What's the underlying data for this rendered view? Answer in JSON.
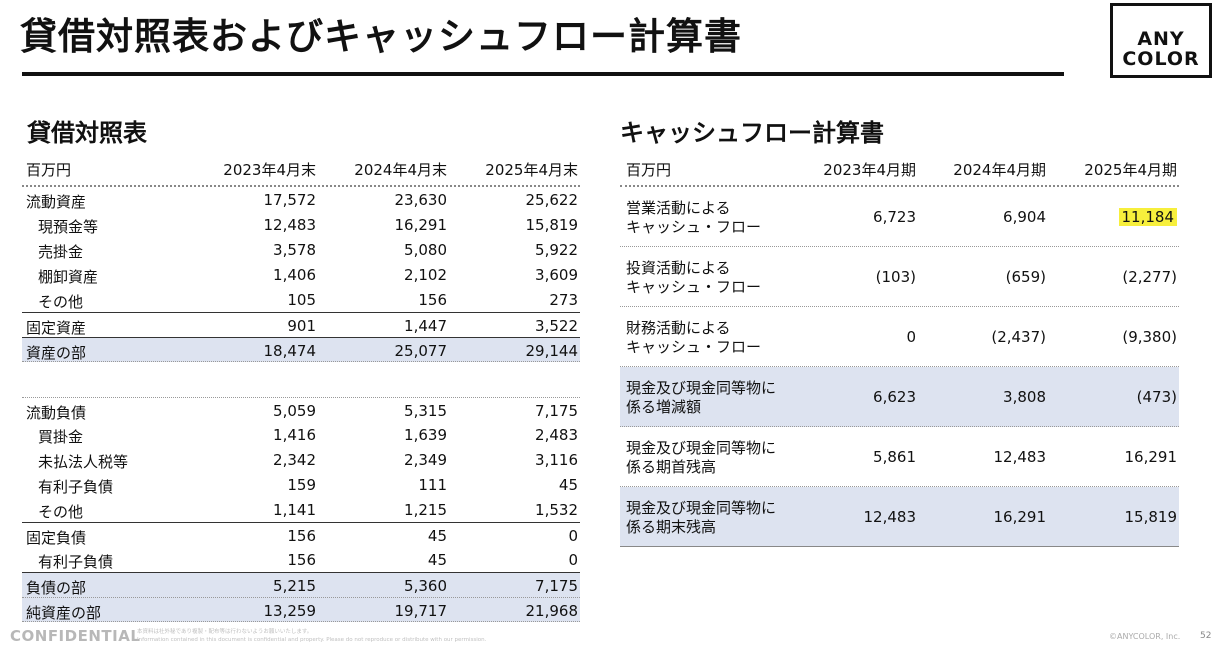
{
  "header": {
    "title": "貸借対照表およびキャッシュフロー計算書",
    "logo_line1": "ANY",
    "logo_line2": "COLOR"
  },
  "balance_sheet": {
    "title": "貸借対照表",
    "columns": [
      "百万円",
      "2023年4月末",
      "2024年4月末",
      "2025年4月末"
    ],
    "rows": [
      {
        "label": "流動資産",
        "v": [
          "17,572",
          "23,630",
          "25,622"
        ]
      },
      {
        "label": "現預金等",
        "v": [
          "12,483",
          "16,291",
          "15,819"
        ]
      },
      {
        "label": "売掛金",
        "v": [
          "3,578",
          "5,080",
          "5,922"
        ]
      },
      {
        "label": "棚卸資産",
        "v": [
          "1,406",
          "2,102",
          "3,609"
        ]
      },
      {
        "label": "その他",
        "v": [
          "105",
          "156",
          "273"
        ]
      },
      {
        "label": "固定資産",
        "v": [
          "901",
          "1,447",
          "3,522"
        ]
      },
      {
        "label": "資産の部",
        "v": [
          "18,474",
          "25,077",
          "29,144"
        ]
      },
      {
        "label": "流動負債",
        "v": [
          "5,059",
          "5,315",
          "7,175"
        ]
      },
      {
        "label": "買掛金",
        "v": [
          "1,416",
          "1,639",
          "2,483"
        ]
      },
      {
        "label": "未払法人税等",
        "v": [
          "2,342",
          "2,349",
          "3,116"
        ]
      },
      {
        "label": "有利子負債",
        "v": [
          "159",
          "111",
          "45"
        ]
      },
      {
        "label": "その他",
        "v": [
          "1,141",
          "1,215",
          "1,532"
        ]
      },
      {
        "label": "固定負債",
        "v": [
          "156",
          "45",
          "0"
        ]
      },
      {
        "label": "有利子負債",
        "v": [
          "156",
          "45",
          "0"
        ]
      },
      {
        "label": "負債の部",
        "v": [
          "5,215",
          "5,360",
          "7,175"
        ]
      },
      {
        "label": "純資産の部",
        "v": [
          "13,259",
          "19,717",
          "21,968"
        ]
      }
    ]
  },
  "cash_flow": {
    "title": "キャッシュフロー計算書",
    "columns": [
      "百万円",
      "2023年4月期",
      "2024年4月期",
      "2025年4月期"
    ],
    "rows": [
      {
        "label1": "営業活動による",
        "label2": "キャッシュ・フロー",
        "v": [
          "6,723",
          "6,904",
          "11,184"
        ]
      },
      {
        "label1": "投資活動による",
        "label2": "キャッシュ・フロー",
        "v": [
          "(103)",
          "(659)",
          "(2,277)"
        ]
      },
      {
        "label1": "財務活動による",
        "label2": "キャッシュ・フロー",
        "v": [
          "0",
          "(2,437)",
          "(9,380)"
        ]
      },
      {
        "label1": "現金及び現金同等物に",
        "label2": "係る増減額",
        "v": [
          "6,623",
          "3,808",
          "(473)"
        ]
      },
      {
        "label1": "現金及び現金同等物に",
        "label2": "係る期首残高",
        "v": [
          "5,861",
          "12,483",
          "16,291"
        ]
      },
      {
        "label1": "現金及び現金同等物に",
        "label2": "係る期末残高",
        "v": [
          "12,483",
          "16,291",
          "15,819"
        ]
      }
    ],
    "highlight_color": "#f7ef3c",
    "shade_color": "#dde3f0"
  },
  "footer": {
    "confidential": "CONFIDENTIAL",
    "fine_print_1": "本資料は社外秘であり複製・配布等は行わないようお願いいたします。",
    "fine_print_2": "Information contained in this document is confidential and property. Please do not reproduce or distribute with our permission.",
    "copyright": "©ANYCOLOR, Inc.",
    "page": "52"
  }
}
